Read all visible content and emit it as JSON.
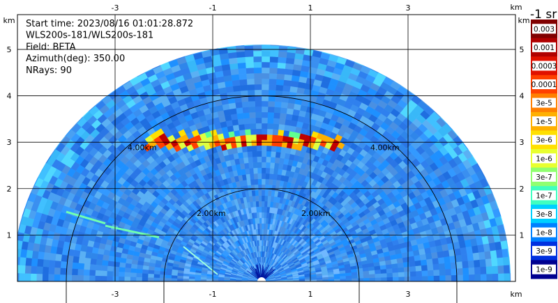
{
  "chart_data": {
    "type": "heatmap",
    "subtype": "lidar PPI/RHI sector scan",
    "info": [
      "Start time: 2023/08/16 01:01:28.872",
      "WLS200s-181/WLS200s-181",
      "Field: BETA",
      "Azimuth(deg): 350.00",
      "NRays: 90"
    ],
    "x_ticks": [
      "-3",
      "-1",
      "1",
      "3"
    ],
    "x_tick_values": [
      -3,
      -1,
      1,
      3
    ],
    "y_ticks": [
      "1",
      "2",
      "3",
      "4",
      "5"
    ],
    "y_tick_values": [
      1,
      2,
      3,
      4,
      5
    ],
    "x_unit": "km",
    "y_unit": "km",
    "xlim": [
      -5.0,
      5.2
    ],
    "ylim": [
      0,
      5.75
    ],
    "grid": true,
    "max_range_km": 5.1,
    "range_rings": [
      {
        "radius_km": 2.0,
        "label": "2.00km"
      },
      {
        "radius_km": 4.0,
        "label": "4.00km"
      }
    ],
    "features": [
      {
        "name": "cloud layer",
        "height_km": 3.0,
        "x_range_km": [
          -2.3,
          1.6
        ]
      },
      {
        "name": "aerosol streak",
        "height_km": 1.5,
        "x_range_km": [
          -4.0,
          -3.2
        ]
      },
      {
        "name": "aerosol streak",
        "height_km": 1.2,
        "x_range_km": [
          -3.2,
          -2.1
        ]
      }
    ],
    "colorbar": {
      "unit": "-1 sr",
      "labels": [
        "0.003",
        "0.001",
        "0.0003",
        "0.0001",
        "3e-5",
        "1e-5",
        "3e-6",
        "1e-6",
        "3e-7",
        "1e-7",
        "3e-8",
        "1e-8",
        "3e-9",
        "1e-9"
      ],
      "colors": [
        "#800000",
        "#b00000",
        "#e01000",
        "#ff4000",
        "#ff8000",
        "#ffb000",
        "#ffe000",
        "#e8ff30",
        "#90ff70",
        "#40ffc0",
        "#00d0ff",
        "#0080ff",
        "#0030e0",
        "#000090"
      ],
      "scale": "log"
    }
  }
}
